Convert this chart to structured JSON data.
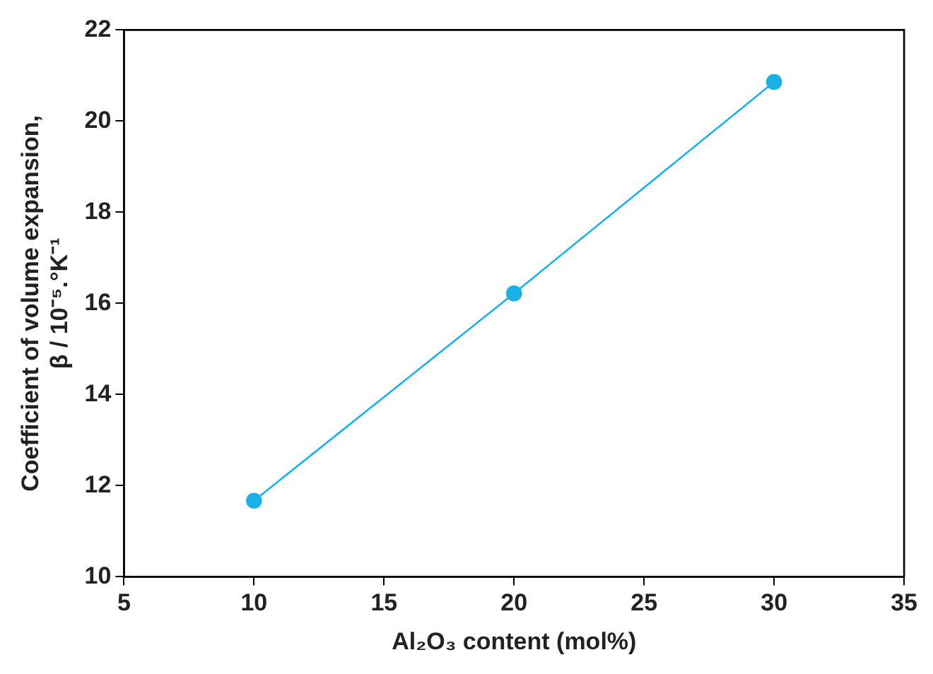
{
  "chart_data": {
    "type": "line",
    "xlabel": "Al₂O₃ content (mol%)",
    "ylabel": [
      "Coefficient of volume expansion,",
      "β / 10⁻⁵.°K⁻¹"
    ],
    "x": [
      10,
      20,
      30
    ],
    "series": [
      {
        "color": "#1bb0e6",
        "values": [
          11.67,
          16.22,
          20.86
        ]
      }
    ],
    "xlim": [
      5,
      35
    ],
    "xticks": [
      5,
      10,
      15,
      20,
      25,
      30,
      35
    ],
    "ylim": [
      10,
      22
    ],
    "yticks": [
      10,
      12,
      14,
      16,
      18,
      20,
      22
    ],
    "grid": false,
    "legend": false,
    "marker": "circle",
    "line_style": "solid"
  }
}
